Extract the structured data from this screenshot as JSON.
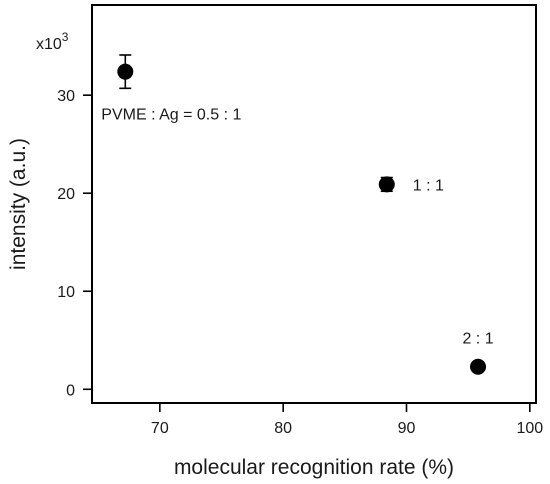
{
  "chart_data": {
    "type": "scatter",
    "xlabel": "molecular recognition rate (%)",
    "ylabel": "intensity (a.u.)",
    "y_scale_prefix": "x10",
    "y_scale_exponent": "3",
    "xlim": [
      64.5,
      100.5
    ],
    "ylim": [
      -1.4,
      39.2
    ],
    "x_ticks": [
      70,
      80,
      90,
      100
    ],
    "y_ticks": [
      0,
      10,
      20,
      30
    ],
    "grid": false,
    "legend": "none",
    "marker_color": "#000000",
    "points": [
      {
        "x": 67.2,
        "y": 32.4,
        "y_err": 1.7,
        "label": "PVME : Ag = 0.5 : 1"
      },
      {
        "x": 88.4,
        "y": 20.9,
        "y_err": 0.7,
        "label": "1 : 1"
      },
      {
        "x": 95.8,
        "y": 2.3,
        "y_err": 0.0,
        "label": "2 : 1"
      }
    ]
  }
}
